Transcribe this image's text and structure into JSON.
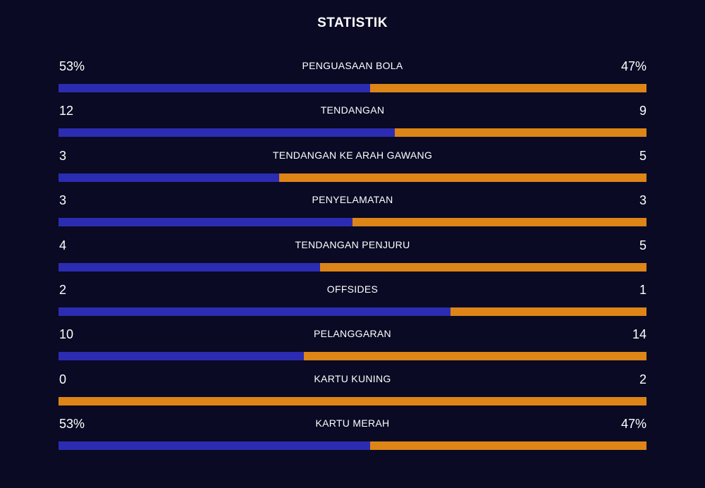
{
  "header": {
    "title": "STATISTIK"
  },
  "colors": {
    "background": "#0a0a24",
    "home": "#2c2cb2",
    "away": "#de8517",
    "text": "#ffffff"
  },
  "stats": [
    {
      "label": "PENGUASAAN BOLA",
      "home_text": "53%",
      "away_text": "47%",
      "home_value": 53,
      "away_value": 47
    },
    {
      "label": "TENDANGAN",
      "home_text": "12",
      "away_text": "9",
      "home_value": 12,
      "away_value": 9
    },
    {
      "label": "TENDANGAN KE ARAH GAWANG",
      "home_text": "3",
      "away_text": "5",
      "home_value": 3,
      "away_value": 5
    },
    {
      "label": "PENYELAMATAN",
      "home_text": "3",
      "away_text": "3",
      "home_value": 3,
      "away_value": 3
    },
    {
      "label": "TENDANGAN PENJURU",
      "home_text": "4",
      "away_text": "5",
      "home_value": 4,
      "away_value": 5
    },
    {
      "label": "OFFSIDES",
      "home_text": "2",
      "away_text": "1",
      "home_value": 2,
      "away_value": 1
    },
    {
      "label": "PELANGGARAN",
      "home_text": "10",
      "away_text": "14",
      "home_value": 10,
      "away_value": 14
    },
    {
      "label": "KARTU KUNING",
      "home_text": "0",
      "away_text": "2",
      "home_value": 0,
      "away_value": 2
    },
    {
      "label": "KARTU MERAH",
      "home_text": "53%",
      "away_text": "47%",
      "home_value": 53,
      "away_value": 47
    }
  ]
}
